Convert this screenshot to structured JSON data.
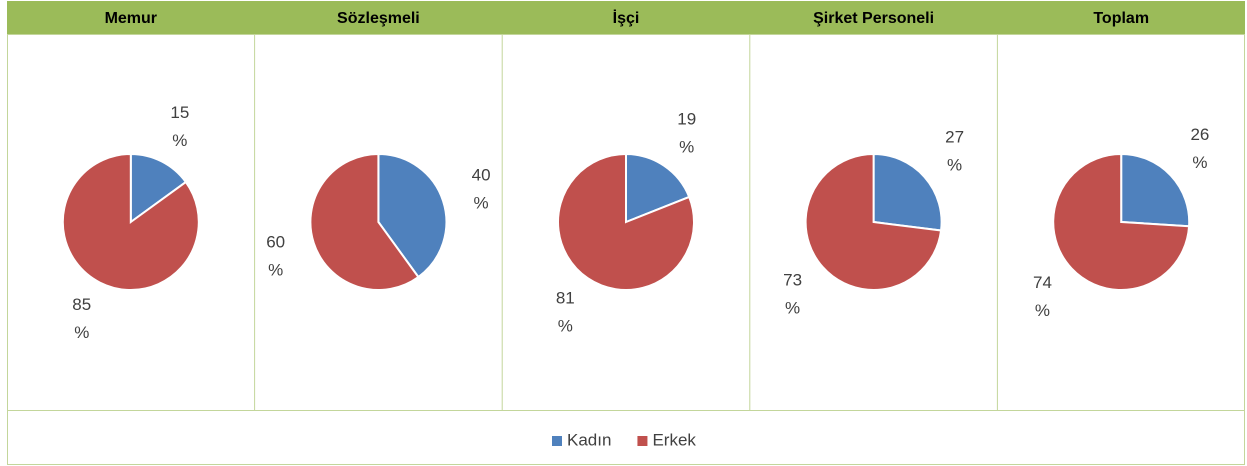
{
  "chart_data": [
    {
      "type": "pie",
      "title": "Memur",
      "categories": [
        "Kadın",
        "Erkek"
      ],
      "values": [
        15,
        85
      ],
      "value_labels": [
        "15 %",
        "85 %"
      ],
      "colors": [
        "#4f81bd",
        "#c0504d"
      ]
    },
    {
      "type": "pie",
      "title": "Sözleşmeli",
      "categories": [
        "Kadın",
        "Erkek"
      ],
      "values": [
        40,
        60
      ],
      "value_labels": [
        "40 %",
        "60 %"
      ],
      "colors": [
        "#4f81bd",
        "#c0504d"
      ]
    },
    {
      "type": "pie",
      "title": "İşçi",
      "categories": [
        "Kadın",
        "Erkek"
      ],
      "values": [
        19,
        81
      ],
      "value_labels": [
        "19 %",
        "81 %"
      ],
      "colors": [
        "#4f81bd",
        "#c0504d"
      ]
    },
    {
      "type": "pie",
      "title": "Şirket Personeli",
      "categories": [
        "Kadın",
        "Erkek"
      ],
      "values": [
        27,
        73
      ],
      "value_labels": [
        "27 %",
        "73 %"
      ],
      "colors": [
        "#4f81bd",
        "#c0504d"
      ]
    },
    {
      "type": "pie",
      "title": "Toplam",
      "categories": [
        "Kadın",
        "Erkek"
      ],
      "values": [
        26,
        74
      ],
      "value_labels": [
        "26 %",
        "74 %"
      ],
      "colors": [
        "#4f81bd",
        "#c0504d"
      ]
    }
  ]
}
